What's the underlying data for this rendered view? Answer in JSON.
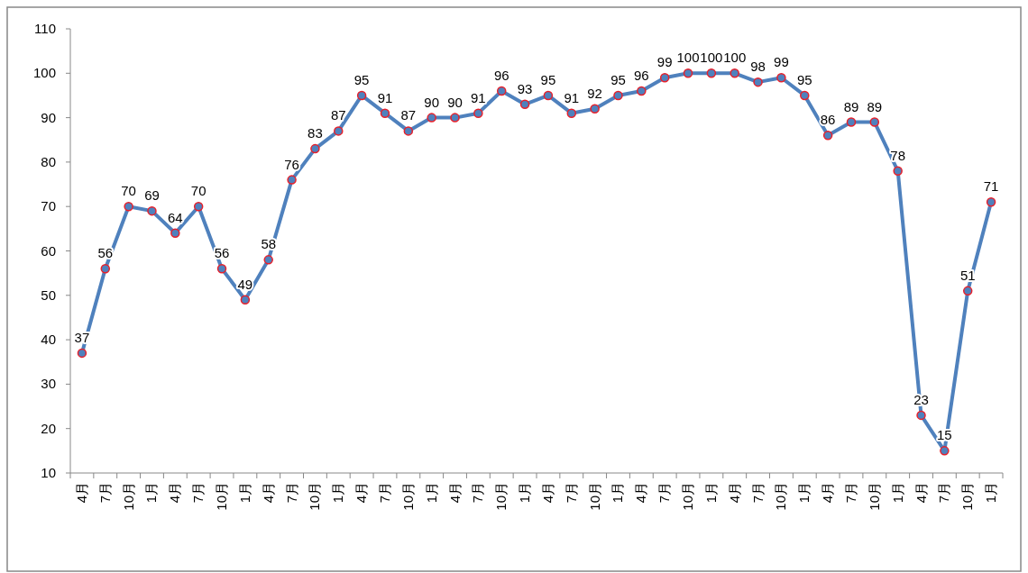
{
  "chart_data": {
    "type": "line",
    "categories": [
      "4月",
      "7月",
      "10月",
      "1月",
      "4月",
      "7月",
      "10月",
      "1月",
      "4月",
      "7月",
      "10月",
      "1月",
      "4月",
      "7月",
      "10月",
      "1月",
      "4月",
      "7月",
      "10月",
      "1月",
      "4月",
      "7月",
      "10月",
      "1月",
      "4月",
      "7月",
      "10月",
      "1月",
      "4月",
      "7月",
      "10月",
      "1月",
      "4月",
      "7月",
      "10月",
      "1月",
      "4月",
      "7月",
      "10月",
      "1月"
    ],
    "series": [
      {
        "color": "#4f81bd",
        "values": [
          37,
          56,
          70,
          69,
          64,
          70,
          56,
          49,
          58,
          76,
          83,
          87,
          95,
          91,
          87,
          90,
          90,
          91,
          96,
          93,
          95,
          91,
          92,
          95,
          96,
          99,
          100,
          100,
          100,
          98,
          99,
          95,
          86,
          89,
          89,
          78,
          23,
          15,
          51,
          71
        ]
      }
    ],
    "ylim": [
      10,
      110
    ],
    "yticks": [
      10,
      20,
      30,
      40,
      50,
      60,
      70,
      80,
      90,
      100,
      110
    ],
    "marker": "circle",
    "data_labels": true
  }
}
